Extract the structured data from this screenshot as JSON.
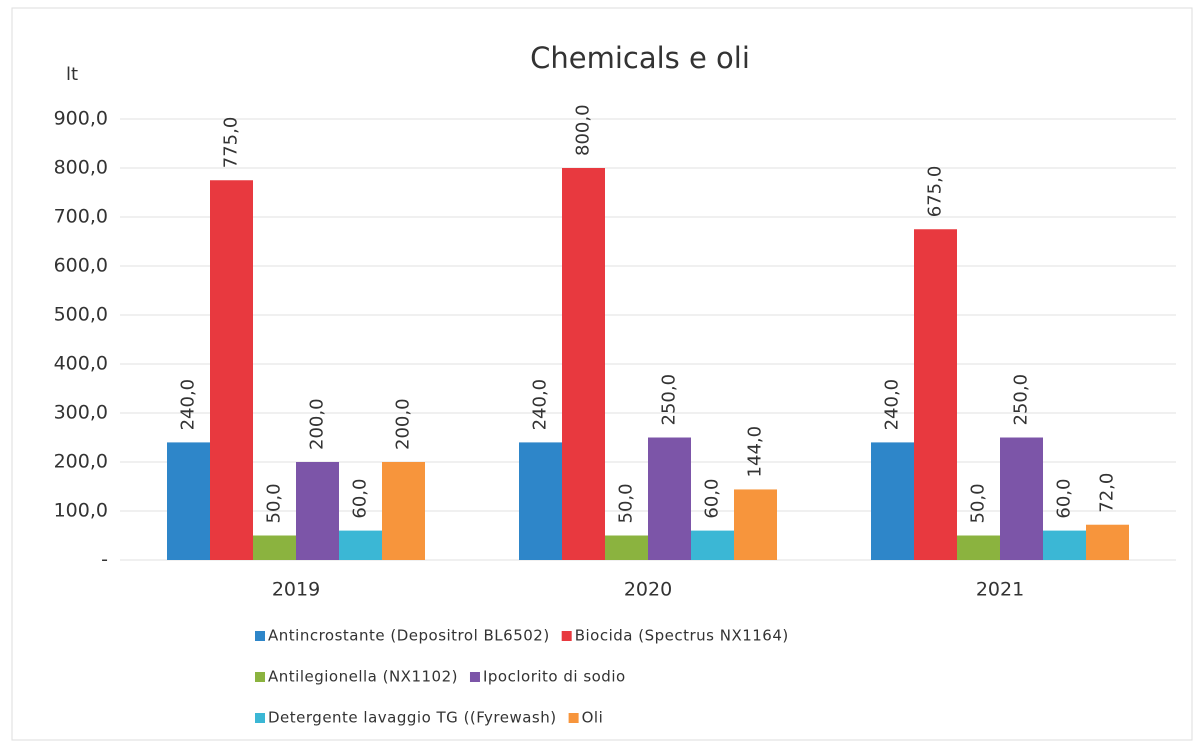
{
  "chart_data": {
    "type": "bar",
    "title": "Chemicals e oli",
    "y_label": "lt",
    "categories": [
      "2019",
      "2020",
      "2021"
    ],
    "series": [
      {
        "name": "Antincrostante (Depositrol BL6502)",
        "color": "#2e86c9",
        "values": [
          240,
          240,
          240
        ],
        "value_labels": [
          "240,0",
          "240,0",
          "240,0"
        ]
      },
      {
        "name": "Biocida (Spectrus NX1164)",
        "color": "#e8393f",
        "values": [
          775,
          800,
          675
        ],
        "value_labels": [
          "775,0",
          "800,0",
          "675,0"
        ]
      },
      {
        "name": "Antilegionella (NX1102)",
        "color": "#8bb33f",
        "values": [
          50,
          50,
          50
        ],
        "value_labels": [
          "50,0",
          "50,0",
          "50,0"
        ]
      },
      {
        "name": "Ipoclorito di sodio",
        "color": "#7c55a8",
        "values": [
          200,
          250,
          250
        ],
        "value_labels": [
          "200,0",
          "250,0",
          "250,0"
        ]
      },
      {
        "name": "Detergente lavaggio TG ((Fyrewash)",
        "color": "#3bb7d5",
        "values": [
          60,
          60,
          60
        ],
        "value_labels": [
          "60,0",
          "60,0",
          "60,0"
        ]
      },
      {
        "name": "Oli",
        "color": "#f7953c",
        "values": [
          200,
          144,
          72
        ],
        "value_labels": [
          "200,0",
          "144,0",
          "72,0"
        ]
      }
    ],
    "ylim": [
      0,
      900
    ],
    "yticks": [
      {
        "value": 0,
        "label": "-"
      },
      {
        "value": 100,
        "label": "100,0"
      },
      {
        "value": 200,
        "label": "200,0"
      },
      {
        "value": 300,
        "label": "300,0"
      },
      {
        "value": 400,
        "label": "400,0"
      },
      {
        "value": 500,
        "label": "500,0"
      },
      {
        "value": 600,
        "label": "600,0"
      },
      {
        "value": 700,
        "label": "700,0"
      },
      {
        "value": 800,
        "label": "800,0"
      },
      {
        "value": 900,
        "label": "900,0"
      }
    ],
    "grid": true,
    "legend": "bottom"
  }
}
